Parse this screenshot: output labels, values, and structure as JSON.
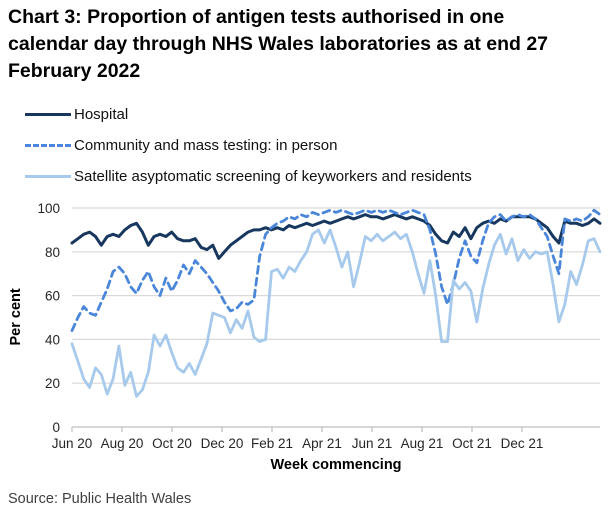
{
  "title": "Chart 3: Proportion of antigen tests authorised in one calendar day through NHS Wales laboratories as at end 27 February 2022",
  "source": "Source: Public Health Wales",
  "colors": {
    "hospital": "#17375e",
    "community": "#4a86d9",
    "satellite": "#a6c9ec",
    "gridline": "#d9d9d9",
    "axis": "#bfbfbf",
    "tick_text": "#262626"
  },
  "chart_data": {
    "type": "line",
    "title": "",
    "xlabel": "Week commencing",
    "ylabel": "Per cent",
    "ylim": [
      0,
      100
    ],
    "y_ticks": [
      0,
      20,
      40,
      60,
      80,
      100
    ],
    "x_tick_labels": [
      "Jun 20",
      "Aug 20",
      "Oct 20",
      "Dec 20",
      "Feb 21",
      "Apr 21",
      "Jun 21",
      "Aug 21",
      "Oct 21",
      "Dec 21"
    ],
    "x_unit": "weekly points, w/c Jun 2020 to end Feb 2022",
    "grid": "horizontal",
    "legend_position": "top-left",
    "series": [
      {
        "name": "Hospital",
        "style": "solid",
        "color": "#17375e",
        "values": [
          84,
          86,
          88,
          89,
          87,
          83,
          87,
          88,
          87,
          90,
          92,
          93,
          89,
          83,
          87,
          88,
          87,
          89,
          86,
          85,
          85,
          86,
          82,
          81,
          83,
          77,
          80,
          83,
          85,
          87,
          89,
          90,
          90,
          91,
          90,
          91,
          90,
          92,
          91,
          92,
          93,
          92,
          93,
          94,
          93,
          94,
          95,
          96,
          95,
          96,
          97,
          96,
          96,
          95,
          96,
          97,
          96,
          95,
          96,
          95,
          94,
          92,
          88,
          85,
          84,
          89,
          87,
          91,
          86,
          91,
          93,
          94,
          93,
          95,
          94,
          96,
          96,
          96,
          96,
          95,
          93,
          91,
          87,
          84,
          94,
          93,
          93,
          92,
          93,
          95,
          93
        ]
      },
      {
        "name": "Community and mass testing: in person",
        "style": "dashed",
        "color": "#4a86d9",
        "values": [
          44,
          50,
          55,
          52,
          51,
          57,
          63,
          71,
          73,
          70,
          64,
          61,
          67,
          71,
          64,
          60,
          68,
          62,
          67,
          74,
          70,
          76,
          73,
          70,
          66,
          62,
          57,
          53,
          54,
          57,
          56,
          58,
          78,
          88,
          91,
          93,
          94,
          96,
          95,
          97,
          96,
          98,
          97,
          98,
          99,
          98,
          99,
          98,
          97,
          98,
          99,
          98,
          99,
          98,
          99,
          98,
          97,
          98,
          99,
          98,
          97,
          90,
          79,
          64,
          56,
          65,
          77,
          85,
          78,
          75,
          85,
          93,
          96,
          97,
          94,
          96,
          97,
          96,
          97,
          95,
          91,
          87,
          78,
          70,
          95,
          94,
          95,
          94,
          96,
          99,
          97
        ]
      },
      {
        "name": "Satellite asyptomatic screening of keyworkers and residents",
        "style": "solid",
        "color": "#a6c9ec",
        "values": [
          38,
          30,
          22,
          18,
          27,
          24,
          15,
          22,
          37,
          19,
          25,
          14,
          17,
          25,
          42,
          37,
          42,
          34,
          27,
          25,
          29,
          24,
          31,
          38,
          52,
          51,
          50,
          43,
          49,
          45,
          53,
          41,
          39,
          40,
          71,
          72,
          68,
          73,
          71,
          76,
          80,
          88,
          90,
          84,
          90,
          82,
          73,
          80,
          64,
          75,
          87,
          85,
          88,
          85,
          87,
          89,
          86,
          88,
          80,
          70,
          61,
          76,
          60,
          39,
          39,
          67,
          63,
          66,
          62,
          48,
          63,
          74,
          83,
          88,
          79,
          86,
          76,
          81,
          77,
          80,
          79,
          80,
          65,
          48,
          56,
          71,
          65,
          74,
          85,
          86,
          80
        ]
      }
    ]
  }
}
